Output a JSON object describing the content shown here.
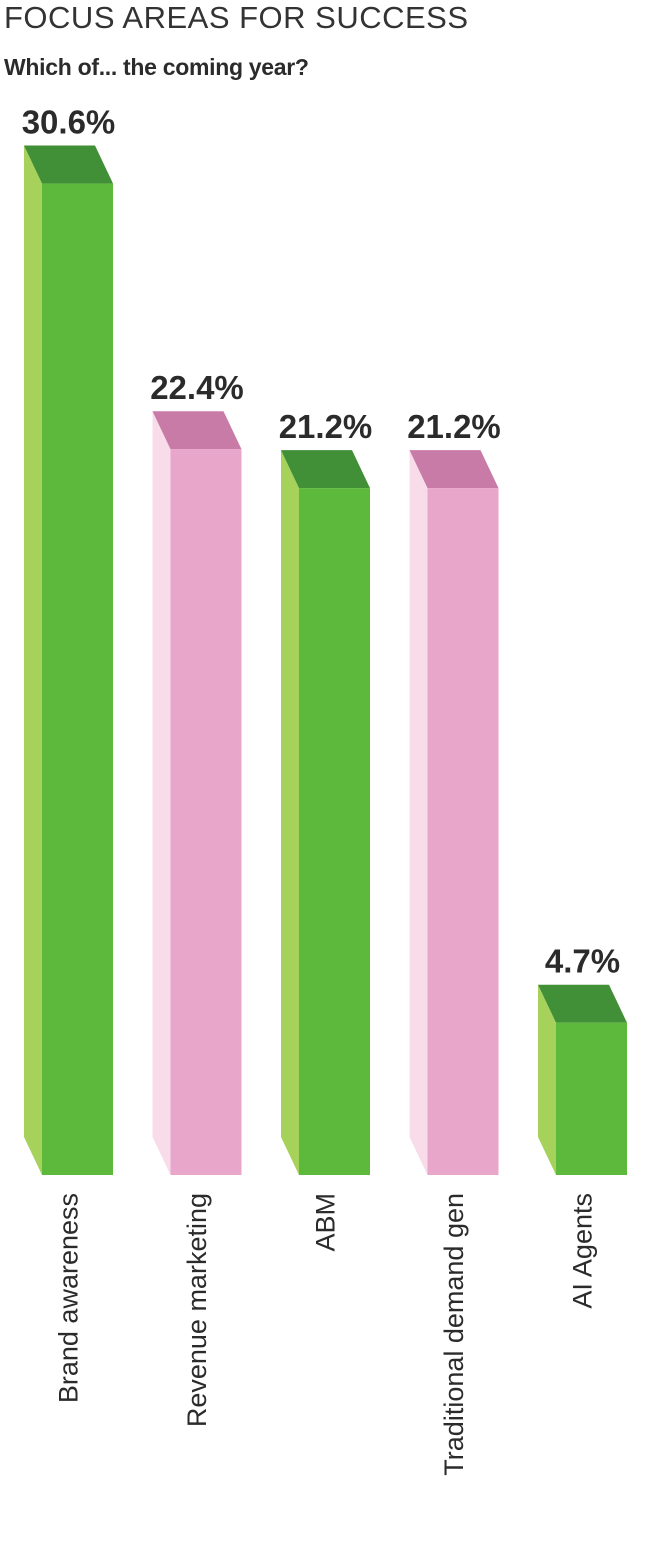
{
  "chart_data": {
    "type": "bar",
    "title": "FOCUS AREAS FOR SUCCESS",
    "subtitle": "Which of... the coming year?",
    "categories": [
      "Brand awareness",
      "Revenue marketing",
      "ABM",
      "Traditional demand gen",
      "AI Agents"
    ],
    "values": [
      30.6,
      22.4,
      21.2,
      21.2,
      4.7
    ],
    "value_labels": [
      "30.6%",
      "22.4%",
      "21.2%",
      "21.2%",
      "4.7%"
    ],
    "unit": "%",
    "style": "3d",
    "grid": false,
    "colors": {
      "green": {
        "front": "#5db93c",
        "side": "#a6d25c",
        "top": "#418f36"
      },
      "pink": {
        "front": "#e8a6ca",
        "side": "#f8dcea",
        "top": "#c97ba7"
      }
    },
    "bar_colors": [
      "green",
      "pink",
      "green",
      "pink",
      "green"
    ]
  }
}
